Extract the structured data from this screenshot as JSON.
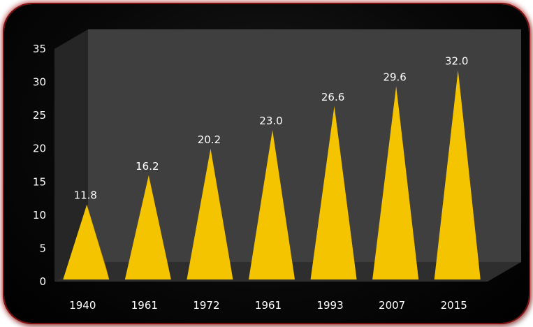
{
  "chart_data": {
    "type": "bar",
    "style": "3d-pyramid",
    "categories": [
      "1940",
      "1961",
      "1972",
      "1961",
      "1993",
      "2007",
      "2015"
    ],
    "values": [
      11.8,
      16.2,
      20.2,
      23.0,
      26.6,
      29.6,
      32.0
    ],
    "data_labels": [
      "11.8",
      "16.2",
      "20.2",
      "23.0",
      "26.6",
      "29.6",
      "32.0"
    ],
    "title": "",
    "xlabel": "",
    "ylabel": "",
    "ylim": [
      0,
      35
    ],
    "yticks": [
      0,
      5,
      10,
      15,
      20,
      25,
      30,
      35
    ],
    "grid": false,
    "legend": "none",
    "colors": {
      "pyramid_front": "#f5c400",
      "pyramid_side": "#b88600",
      "back_wall": "#3f3f3f",
      "side_wall": "#262626",
      "floor": "#2e2e2e",
      "border_glow": "#b01818"
    }
  }
}
